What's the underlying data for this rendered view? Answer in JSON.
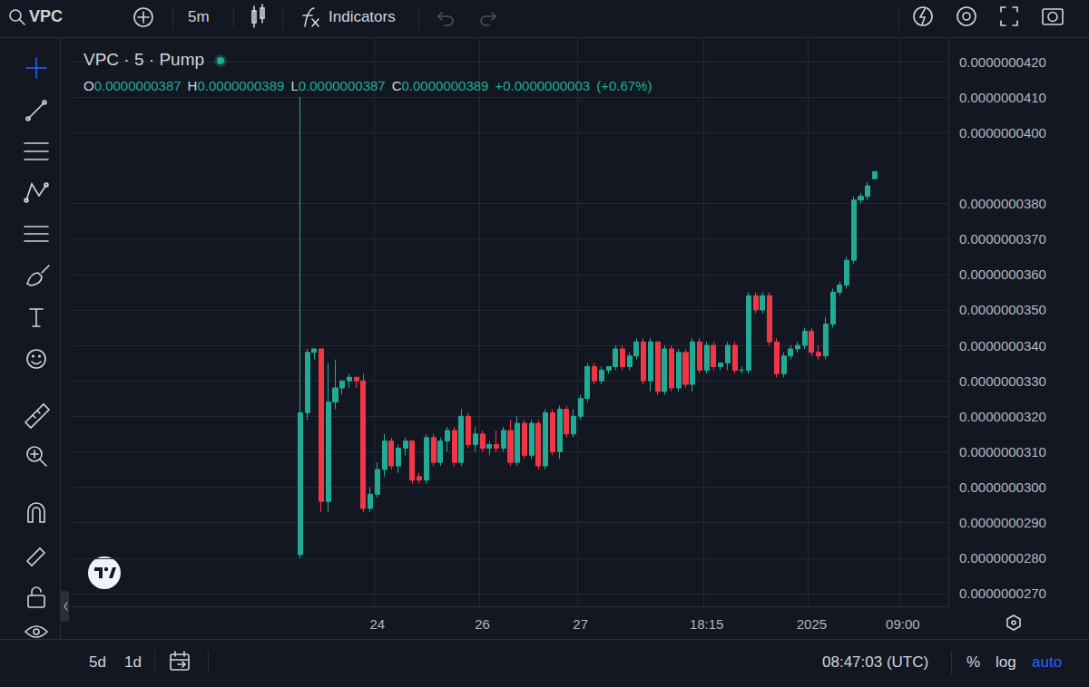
{
  "toolbar": {
    "symbol": "VPC",
    "interval": "5m",
    "indicators": "Indicators"
  },
  "chart_data": {
    "type": "candlestick",
    "title": "VPC · 5 · Pump",
    "ohlc": [
      {
        "name": "O",
        "value": 3.87e-08,
        "label": "0.0000000387"
      },
      {
        "name": "H",
        "value": 3.89e-08,
        "label": "0.0000000389"
      },
      {
        "name": "L",
        "value": 3.87e-08,
        "label": "0.0000000387"
      },
      {
        "name": "C",
        "value": 3.89e-08,
        "label": "0.0000000389"
      }
    ],
    "change": {
      "value": 3e-10,
      "label": "+0.0000000003"
    },
    "change_percent": {
      "value": 0.67,
      "label": "(+0.67%)"
    },
    "last_price": {
      "value": 3.89e-08,
      "label": "0.0000000389"
    },
    "categories": [
      null,
      null,
      null,
      null,
      null,
      null,
      null,
      null,
      null,
      null,
      null,
      null,
      null,
      null,
      null,
      null,
      null,
      null,
      null,
      null,
      null,
      null,
      null,
      null,
      null,
      null,
      null,
      null,
      null,
      null,
      null,
      null,
      null,
      null,
      null,
      null,
      null,
      null,
      null,
      null,
      null,
      null,
      null,
      "24",
      null,
      null,
      null,
      null,
      null,
      null,
      null,
      null,
      null,
      null,
      null,
      null,
      null,
      null,
      "26",
      null,
      null,
      null,
      null,
      null,
      null,
      null,
      null,
      null,
      null,
      null,
      null,
      null,
      "27",
      null,
      null,
      null,
      null,
      null,
      null,
      null,
      null,
      null,
      null,
      null,
      null,
      null,
      null,
      null,
      null,
      null,
      "18:15",
      null,
      null,
      null,
      null,
      null,
      null,
      null,
      null,
      null,
      null,
      null,
      null,
      null,
      null,
      "2025",
      null,
      null,
      null,
      null,
      null,
      null,
      null,
      null,
      null,
      null,
      null,
      null,
      "09:00",
      null,
      null,
      null,
      null,
      null,
      null
    ],
    "open": [
      null,
      null,
      null,
      null,
      null,
      null,
      null,
      null,
      null,
      null,
      null,
      null,
      null,
      null,
      null,
      null,
      null,
      null,
      null,
      null,
      null,
      null,
      null,
      null,
      null,
      null,
      null,
      null,
      null,
      null,
      null,
      null,
      2.81e-08,
      3.21e-08,
      3.38e-08,
      3.39e-08,
      2.96e-08,
      3.24e-08,
      3.28e-08,
      3.3e-08,
      3.31e-08,
      3.3e-08,
      2.94e-08,
      2.98e-08,
      3.05e-08,
      3.13e-08,
      3.06e-08,
      3.11e-08,
      3.13e-08,
      3.03e-08,
      3.02e-08,
      3.14e-08,
      3.07e-08,
      3.13e-08,
      3.16e-08,
      3.07e-08,
      3.2e-08,
      3.12e-08,
      3.15e-08,
      3.11e-08,
      3.12e-08,
      3.11e-08,
      3.16e-08,
      3.07e-08,
      3.18e-08,
      3.09e-08,
      3.18e-08,
      3.06e-08,
      3.21e-08,
      3.1e-08,
      3.22e-08,
      3.15e-08,
      3.2e-08,
      3.25e-08,
      3.34e-08,
      3.3e-08,
      3.33e-08,
      3.34e-08,
      3.39e-08,
      3.34e-08,
      3.37e-08,
      3.41e-08,
      3.3e-08,
      3.41e-08,
      3.27e-08,
      3.39e-08,
      3.28e-08,
      3.38e-08,
      3.29e-08,
      3.41e-08,
      3.33e-08,
      3.4e-08,
      3.34e-08,
      3.35e-08,
      3.4e-08,
      3.33e-08,
      3.33e-08,
      3.54e-08,
      3.5e-08,
      3.54e-08,
      3.41e-08,
      3.32e-08,
      3.37e-08,
      3.39e-08,
      3.4e-08,
      3.44e-08,
      3.38e-08,
      3.37e-08,
      3.46e-08,
      3.55e-08,
      3.57e-08,
      3.64e-08,
      3.81e-08,
      3.82e-08,
      3.87e-08,
      null,
      null,
      null,
      null,
      null,
      null,
      null,
      null,
      null,
      null
    ],
    "high": [
      null,
      null,
      null,
      null,
      null,
      null,
      null,
      null,
      null,
      null,
      null,
      null,
      null,
      null,
      null,
      null,
      null,
      null,
      null,
      null,
      null,
      null,
      null,
      null,
      null,
      null,
      null,
      null,
      null,
      null,
      null,
      null,
      4.1e-08,
      3.39e-08,
      3.39e-08,
      3.39e-08,
      3.35e-08,
      3.36e-08,
      3.3e-08,
      3.32e-08,
      3.31e-08,
      3.32e-08,
      3e-08,
      3.07e-08,
      3.15e-08,
      3.14e-08,
      3.12e-08,
      3.14e-08,
      3.13e-08,
      3.04e-08,
      3.15e-08,
      3.15e-08,
      3.14e-08,
      3.17e-08,
      3.17e-08,
      3.22e-08,
      3.21e-08,
      3.17e-08,
      3.16e-08,
      3.13e-08,
      3.16e-08,
      3.17e-08,
      3.19e-08,
      3.2e-08,
      3.19e-08,
      3.19e-08,
      3.19e-08,
      3.22e-08,
      3.22e-08,
      3.23e-08,
      3.23e-08,
      3.22e-08,
      3.26e-08,
      3.35e-08,
      3.35e-08,
      3.34e-08,
      3.34e-08,
      3.4e-08,
      3.4e-08,
      3.38e-08,
      3.42e-08,
      3.42e-08,
      3.42e-08,
      3.41e-08,
      3.4e-08,
      3.4e-08,
      3.39e-08,
      3.39e-08,
      3.42e-08,
      3.42e-08,
      3.41e-08,
      3.41e-08,
      3.35e-08,
      3.41e-08,
      3.41e-08,
      3.34e-08,
      3.55e-08,
      3.55e-08,
      3.55e-08,
      3.55e-08,
      3.42e-08,
      3.38e-08,
      3.4e-08,
      3.41e-08,
      3.45e-08,
      3.45e-08,
      3.4e-08,
      3.48e-08,
      3.56e-08,
      3.58e-08,
      3.65e-08,
      3.82e-08,
      3.83e-08,
      3.86e-08,
      3.89e-08,
      null,
      null,
      null,
      null,
      null,
      null,
      null,
      null,
      null,
      null
    ],
    "low": [
      null,
      null,
      null,
      null,
      null,
      null,
      null,
      null,
      null,
      null,
      null,
      null,
      null,
      null,
      null,
      null,
      null,
      null,
      null,
      null,
      null,
      null,
      null,
      null,
      null,
      null,
      null,
      null,
      null,
      null,
      null,
      null,
      2.8e-08,
      3.19e-08,
      3.36e-08,
      2.93e-08,
      2.93e-08,
      3.22e-08,
      3.26e-08,
      3.28e-08,
      3.28e-08,
      2.93e-08,
      2.93e-08,
      2.97e-08,
      3.03e-08,
      3.05e-08,
      3.04e-08,
      3.09e-08,
      3.01e-08,
      3.01e-08,
      3.01e-08,
      3.06e-08,
      3.06e-08,
      3.1e-08,
      3.06e-08,
      3.06e-08,
      3.11e-08,
      3.1e-08,
      3.1e-08,
      3.09e-08,
      3.1e-08,
      3.1e-08,
      3.06e-08,
      3.06e-08,
      3.08e-08,
      3.08e-08,
      3.05e-08,
      3.05e-08,
      3.09e-08,
      3.08e-08,
      3.14e-08,
      3.14e-08,
      3.19e-08,
      3.24e-08,
      3.29e-08,
      3.29e-08,
      3.32e-08,
      3.33e-08,
      3.33e-08,
      3.33e-08,
      3.36e-08,
      3.29e-08,
      3.27e-08,
      3.26e-08,
      3.26e-08,
      3.27e-08,
      3.27e-08,
      3.28e-08,
      3.27e-08,
      3.32e-08,
      3.32e-08,
      3.33e-08,
      3.33e-08,
      3.33e-08,
      3.32e-08,
      3.32e-08,
      3.32e-08,
      3.49e-08,
      3.49e-08,
      3.4e-08,
      3.31e-08,
      3.31e-08,
      3.36e-08,
      3.38e-08,
      3.39e-08,
      3.37e-08,
      3.36e-08,
      3.36e-08,
      3.45e-08,
      3.54e-08,
      3.56e-08,
      3.63e-08,
      3.8e-08,
      3.81e-08,
      3.87e-08,
      null,
      null,
      null,
      null,
      null,
      null,
      null,
      null,
      null,
      null
    ],
    "close": [
      null,
      null,
      null,
      null,
      null,
      null,
      null,
      null,
      null,
      null,
      null,
      null,
      null,
      null,
      null,
      null,
      null,
      null,
      null,
      null,
      null,
      null,
      null,
      null,
      null,
      null,
      null,
      null,
      null,
      null,
      null,
      null,
      3.21e-08,
      3.38e-08,
      3.39e-08,
      2.96e-08,
      3.24e-08,
      3.28e-08,
      3.3e-08,
      3.31e-08,
      3.3e-08,
      2.94e-08,
      2.98e-08,
      3.05e-08,
      3.13e-08,
      3.06e-08,
      3.11e-08,
      3.13e-08,
      3.02e-08,
      3.02e-08,
      3.14e-08,
      3.07e-08,
      3.13e-08,
      3.16e-08,
      3.07e-08,
      3.2e-08,
      3.12e-08,
      3.15e-08,
      3.11e-08,
      3.12e-08,
      3.11e-08,
      3.16e-08,
      3.07e-08,
      3.18e-08,
      3.09e-08,
      3.18e-08,
      3.06e-08,
      3.21e-08,
      3.1e-08,
      3.22e-08,
      3.15e-08,
      3.2e-08,
      3.25e-08,
      3.34e-08,
      3.3e-08,
      3.33e-08,
      3.34e-08,
      3.39e-08,
      3.34e-08,
      3.37e-08,
      3.41e-08,
      3.3e-08,
      3.41e-08,
      3.27e-08,
      3.39e-08,
      3.28e-08,
      3.38e-08,
      3.29e-08,
      3.41e-08,
      3.33e-08,
      3.4e-08,
      3.34e-08,
      3.35e-08,
      3.4e-08,
      3.33e-08,
      3.33e-08,
      3.54e-08,
      3.5e-08,
      3.54e-08,
      3.41e-08,
      3.32e-08,
      3.37e-08,
      3.39e-08,
      3.4e-08,
      3.44e-08,
      3.38e-08,
      3.37e-08,
      3.46e-08,
      3.55e-08,
      3.57e-08,
      3.64e-08,
      3.81e-08,
      3.82e-08,
      3.85e-08,
      3.89e-08,
      null,
      null,
      null,
      null,
      null,
      null,
      null,
      null,
      null,
      null
    ],
    "ylim": [
      2.664e-08,
      4.264e-08
    ],
    "yticks": [
      {
        "value": 2.7e-08,
        "label": "0.0000000270"
      },
      {
        "value": 2.8e-08,
        "label": "0.0000000280"
      },
      {
        "value": 2.9e-08,
        "label": "0.0000000290"
      },
      {
        "value": 3e-08,
        "label": "0.0000000300"
      },
      {
        "value": 3.1e-08,
        "label": "0.0000000310"
      },
      {
        "value": 3.2e-08,
        "label": "0.0000000320"
      },
      {
        "value": 3.3e-08,
        "label": "0.0000000330"
      },
      {
        "value": 3.4e-08,
        "label": "0.0000000340"
      },
      {
        "value": 3.5e-08,
        "label": "0.0000000350"
      },
      {
        "value": 3.6e-08,
        "label": "0.0000000360"
      },
      {
        "value": 3.7e-08,
        "label": "0.0000000370"
      },
      {
        "value": 3.8e-08,
        "label": "0.0000000380"
      },
      {
        "value": 4e-08,
        "label": "0.0000000400"
      },
      {
        "value": 4.1e-08,
        "label": "0.0000000410"
      },
      {
        "value": 4.2e-08,
        "label": "0.0000000420"
      }
    ],
    "grid": true
  },
  "footer": {
    "ranges": [
      "5d",
      "1d"
    ],
    "clock": "08:47:03 (UTC)",
    "buttons": [
      "%",
      "log",
      "auto"
    ]
  }
}
